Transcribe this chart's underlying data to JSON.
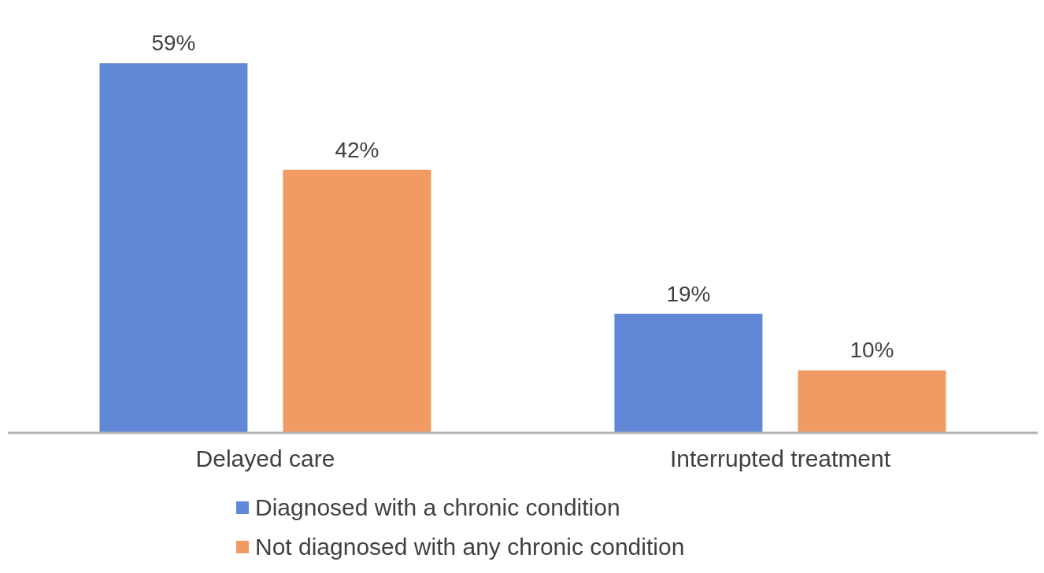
{
  "chart_data": {
    "type": "bar",
    "categories": [
      "Delayed care",
      "Interrupted treatment"
    ],
    "series": [
      {
        "name": "Diagnosed with a chronic condition",
        "color": "#6088d6",
        "values": [
          59,
          19
        ],
        "value_labels": [
          "59%",
          "19%"
        ]
      },
      {
        "name": "Not diagnosed with any chronic condition",
        "color": "#f19a63",
        "values": [
          42,
          10
        ],
        "value_labels": [
          "42%",
          "10%"
        ]
      }
    ],
    "legend": "bottom",
    "grid": false
  }
}
